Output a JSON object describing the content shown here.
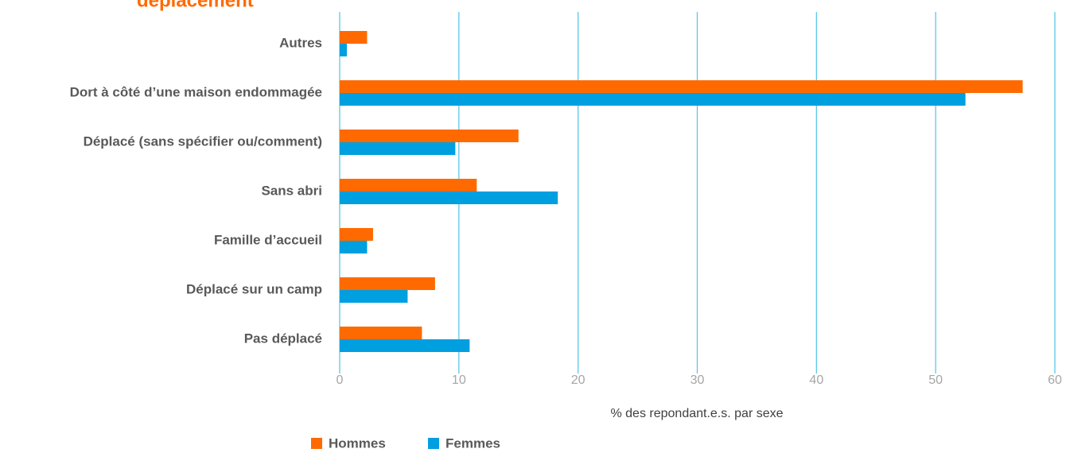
{
  "chart_data": {
    "type": "hbar",
    "title": "déplacement",
    "xlabel": "% des repondant.e.s. par sexe",
    "categories": [
      "Autres",
      "Dort à côté d’une maison endommagée",
      "Déplacé (sans spécifier ou/comment)",
      "Sans abri",
      "Famille d’accueil",
      "Déplacé sur un camp",
      "Pas déplacé"
    ],
    "series": [
      {
        "name": "Hommes",
        "color": "#ff6a00",
        "values": [
          2.3,
          57.3,
          15.0,
          11.5,
          2.8,
          8.0,
          6.9
        ]
      },
      {
        "name": "Femmes",
        "color": "#009fdf",
        "values": [
          0.6,
          52.5,
          9.7,
          18.3,
          2.3,
          5.7,
          10.9
        ]
      }
    ],
    "xlim": [
      0,
      60
    ],
    "xticks": [
      0,
      10,
      20,
      30,
      40,
      50,
      60
    ],
    "grid": true,
    "legend": "bottom"
  }
}
